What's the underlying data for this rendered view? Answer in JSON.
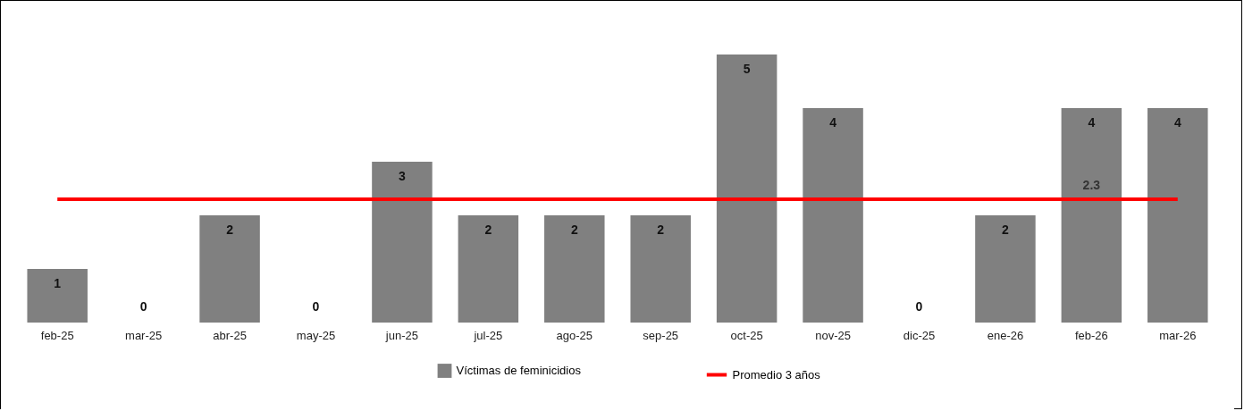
{
  "chart_data": {
    "type": "bar",
    "categories": [
      "feb-25",
      "mar-25",
      "abr-25",
      "may-25",
      "jun-25",
      "jul-25",
      "ago-25",
      "sep-25",
      "oct-25",
      "nov-25",
      "dic-25",
      "ene-26",
      "feb-26",
      "mar-26"
    ],
    "series": [
      {
        "name": "Víctimas de feminicidios",
        "color": "#808080",
        "values": [
          1,
          0,
          2,
          0,
          3,
          2,
          2,
          2,
          5,
          4,
          0,
          2,
          4,
          4
        ]
      },
      {
        "name": "Promedio 3 años",
        "type": "line",
        "color": "#ff0000",
        "values": [
          2.3,
          2.3,
          2.3,
          2.3,
          2.3,
          2.3,
          2.3,
          2.3,
          2.3,
          2.3,
          2.3,
          2.3,
          2.3,
          2.3
        ],
        "value_labels": [
          null,
          null,
          null,
          null,
          null,
          null,
          null,
          null,
          null,
          null,
          null,
          null,
          "2.3",
          null
        ]
      }
    ],
    "data_labels": true,
    "legend": "bottom",
    "grid": false
  }
}
